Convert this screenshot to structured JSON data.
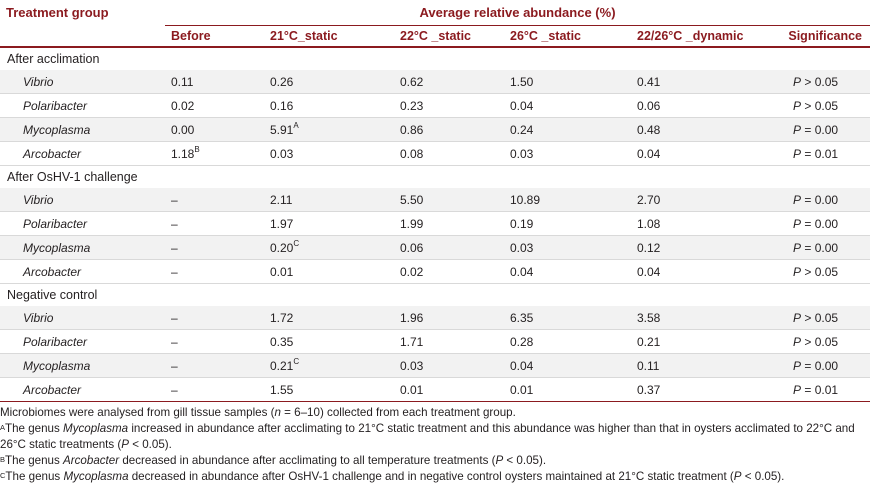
{
  "table": {
    "header": {
      "treatment_group": "Treatment group",
      "average_title": "Average relative abundance (%)",
      "columns": [
        "Before",
        "21°C_static",
        "22°C _static",
        "26°C _static",
        "22/26°C _dynamic",
        "Significance"
      ]
    },
    "groups": [
      {
        "label": "After acclimation",
        "rows": [
          {
            "genus": "Vibrio",
            "before": "0.11",
            "before_sup": "",
            "c21": "0.26",
            "c21_sup": "",
            "c22": "0.62",
            "c26": "1.50",
            "dyn": "0.41",
            "p": "P",
            "sig": " > 0.05"
          },
          {
            "genus": "Polaribacter",
            "before": "0.02",
            "before_sup": "",
            "c21": "0.16",
            "c21_sup": "",
            "c22": "0.23",
            "c26": "0.04",
            "dyn": "0.06",
            "p": "P",
            "sig": " > 0.05"
          },
          {
            "genus": "Mycoplasma",
            "before": "0.00",
            "before_sup": "",
            "c21": "5.91",
            "c21_sup": "A",
            "c22": "0.86",
            "c26": "0.24",
            "dyn": "0.48",
            "p": "P",
            "sig": " = 0.00"
          },
          {
            "genus": "Arcobacter",
            "before": "1.18",
            "before_sup": "B",
            "c21": "0.03",
            "c21_sup": "",
            "c22": "0.08",
            "c26": "0.03",
            "dyn": "0.04",
            "p": "P",
            "sig": " = 0.01"
          }
        ]
      },
      {
        "label": "After OsHV-1 challenge",
        "rows": [
          {
            "genus": "Vibrio",
            "before": "–",
            "before_sup": "",
            "c21": "2.11",
            "c21_sup": "",
            "c22": "5.50",
            "c26": "10.89",
            "dyn": "2.70",
            "p": "P",
            "sig": " = 0.00"
          },
          {
            "genus": "Polaribacter",
            "before": "–",
            "before_sup": "",
            "c21": "1.97",
            "c21_sup": "",
            "c22": "1.99",
            "c26": "0.19",
            "dyn": "1.08",
            "p": "P",
            "sig": " = 0.00"
          },
          {
            "genus": "Mycoplasma",
            "before": "–",
            "before_sup": "",
            "c21": "0.20",
            "c21_sup": "C",
            "c22": "0.06",
            "c26": "0.03",
            "dyn": "0.12",
            "p": "P",
            "sig": " = 0.00"
          },
          {
            "genus": "Arcobacter",
            "before": "–",
            "before_sup": "",
            "c21": "0.01",
            "c21_sup": "",
            "c22": "0.02",
            "c26": "0.04",
            "dyn": "0.04",
            "p": "P",
            "sig": " > 0.05"
          }
        ]
      },
      {
        "label": "Negative control",
        "rows": [
          {
            "genus": "Vibrio",
            "before": "–",
            "before_sup": "",
            "c21": "1.72",
            "c21_sup": "",
            "c22": "1.96",
            "c26": "6.35",
            "dyn": "3.58",
            "p": "P",
            "sig": " > 0.05"
          },
          {
            "genus": "Polaribacter",
            "before": "–",
            "before_sup": "",
            "c21": "0.35",
            "c21_sup": "",
            "c22": "1.71",
            "c26": "0.28",
            "dyn": "0.21",
            "p": "P",
            "sig": " > 0.05"
          },
          {
            "genus": "Mycoplasma",
            "before": "–",
            "before_sup": "",
            "c21": "0.21",
            "c21_sup": "C",
            "c22": "0.03",
            "c26": "0.04",
            "dyn": "0.11",
            "p": "P",
            "sig": " = 0.00"
          },
          {
            "genus": "Arcobacter",
            "before": "–",
            "before_sup": "",
            "c21": "1.55",
            "c21_sup": "",
            "c22": "0.01",
            "c26": "0.01",
            "dyn": "0.37",
            "p": "P",
            "sig": " = 0.01"
          }
        ]
      }
    ]
  },
  "footnotes": {
    "n1_pre": "Microbiomes were analysed from gill tissue samples (",
    "n1_n": "n",
    "n1_post": " = 6–10) collected from each treatment group.",
    "a_sup": "A",
    "a_pre": "The genus ",
    "a_genus": "Mycoplasma",
    "a_post": " increased in abundance after acclimating to 21°C static treatment and this abundance was higher than that in oysters acclimated to 22°C and",
    "a_line2_pre": "26°C static treatments (",
    "a_p": "P",
    "a_line2_post": " < 0.05).",
    "b_sup": "B",
    "b_pre": "The genus ",
    "b_genus": "Arcobacter",
    "b_post_pre": " decreased in abundance after acclimating to all temperature treatments (",
    "b_p": "P",
    "b_post": " < 0.05).",
    "c_sup": "C",
    "c_pre": "The genus ",
    "c_genus": "Mycoplasma",
    "c_mid": " decreased in abundance after OsHV-1 challenge and in negative control oysters maintained at 21°C static treatment (",
    "c_p": "P",
    "c_post": " < 0.05)."
  }
}
